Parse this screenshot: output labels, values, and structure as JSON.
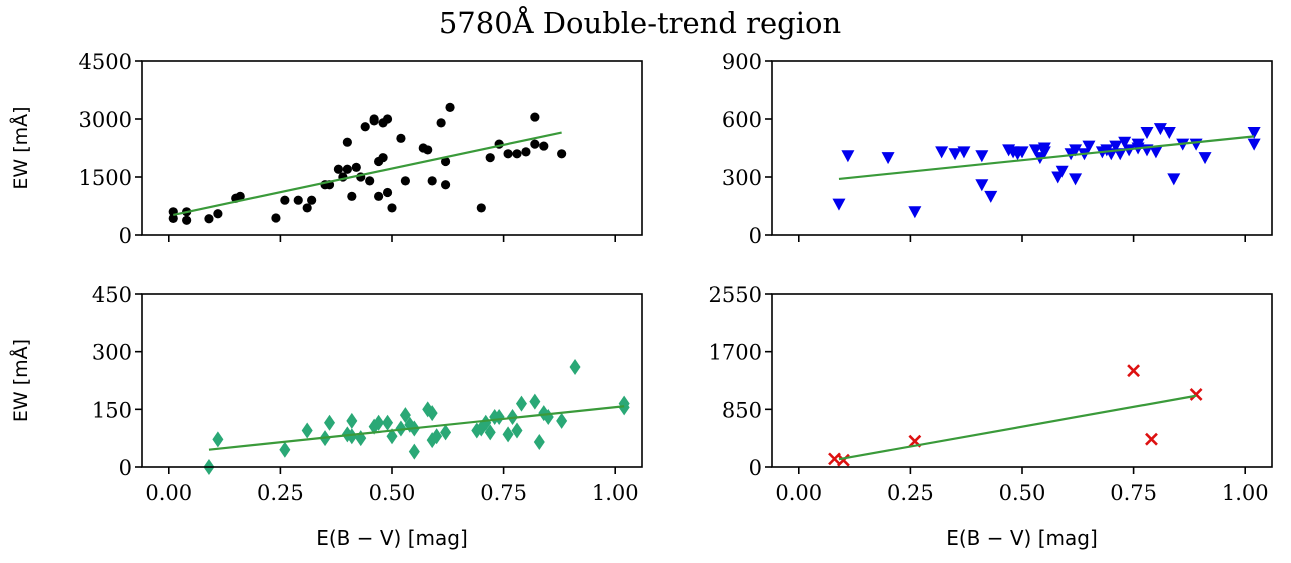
{
  "chart_data": {
    "title": "5780Å Double-trend region",
    "panels": [
      {
        "type": "scatter",
        "name": "top-left",
        "ylabel": "EW [mÅ]",
        "xlabel": "",
        "xlim": [
          -0.06,
          1.06
        ],
        "ylim": [
          0,
          4500
        ],
        "yticks": [
          0,
          1500,
          3000,
          4500
        ],
        "yticklabels": [
          "0",
          "1500",
          "3000",
          "4500"
        ],
        "xticks": [
          0.0,
          0.25,
          0.5,
          0.75,
          1.0
        ],
        "xticklabels": [],
        "marker": "circle",
        "color": "#000000",
        "fit_color": "#3a9a3a",
        "fit": {
          "x": [
            0.01,
            0.88
          ],
          "y": [
            520,
            2650
          ]
        },
        "points": {
          "x": [
            0.01,
            0.01,
            0.04,
            0.04,
            0.09,
            0.11,
            0.15,
            0.16,
            0.24,
            0.26,
            0.29,
            0.31,
            0.32,
            0.35,
            0.36,
            0.38,
            0.39,
            0.4,
            0.4,
            0.41,
            0.42,
            0.43,
            0.44,
            0.45,
            0.46,
            0.46,
            0.47,
            0.47,
            0.48,
            0.48,
            0.49,
            0.49,
            0.5,
            0.52,
            0.53,
            0.57,
            0.58,
            0.59,
            0.61,
            0.62,
            0.62,
            0.63,
            0.7,
            0.72,
            0.74,
            0.76,
            0.78,
            0.8,
            0.82,
            0.82,
            0.84,
            0.88
          ],
          "y": [
            600,
            430,
            600,
            380,
            420,
            550,
            950,
            1000,
            440,
            900,
            900,
            700,
            900,
            1300,
            1300,
            1700,
            1500,
            2400,
            1700,
            1000,
            1750,
            1500,
            2800,
            1400,
            2950,
            3000,
            1000,
            1900,
            2900,
            2000,
            1100,
            3000,
            700,
            2500,
            1400,
            2250,
            2200,
            1400,
            2900,
            1300,
            1900,
            3300,
            700,
            2000,
            2350,
            2100,
            2100,
            2150,
            3050,
            2350,
            2300,
            2100
          ]
        }
      },
      {
        "type": "scatter",
        "name": "top-right",
        "ylabel": "",
        "xlabel": "",
        "xlim": [
          -0.06,
          1.06
        ],
        "ylim": [
          0,
          900
        ],
        "yticks": [
          0,
          300,
          600,
          900
        ],
        "yticklabels": [
          "0",
          "300",
          "600",
          "900"
        ],
        "xticks": [
          0.0,
          0.25,
          0.5,
          0.75,
          1.0
        ],
        "xticklabels": [],
        "marker": "triangle-down",
        "color": "#0000ee",
        "fit_color": "#3a9a3a",
        "fit": {
          "x": [
            0.09,
            1.02
          ],
          "y": [
            290,
            510
          ]
        },
        "points": {
          "x": [
            0.09,
            0.11,
            0.2,
            0.26,
            0.32,
            0.35,
            0.37,
            0.41,
            0.41,
            0.43,
            0.47,
            0.48,
            0.49,
            0.5,
            0.53,
            0.54,
            0.55,
            0.55,
            0.58,
            0.59,
            0.61,
            0.62,
            0.62,
            0.64,
            0.65,
            0.68,
            0.69,
            0.7,
            0.71,
            0.72,
            0.73,
            0.74,
            0.76,
            0.76,
            0.78,
            0.78,
            0.8,
            0.81,
            0.83,
            0.84,
            0.86,
            0.89,
            0.91,
            1.02,
            1.02
          ],
          "y": [
            160,
            410,
            400,
            120,
            430,
            420,
            430,
            260,
            410,
            200,
            440,
            430,
            420,
            430,
            440,
            400,
            450,
            430,
            300,
            330,
            420,
            440,
            290,
            420,
            460,
            430,
            440,
            420,
            460,
            420,
            480,
            440,
            470,
            450,
            440,
            530,
            430,
            550,
            530,
            290,
            470,
            470,
            400,
            530,
            470
          ]
        }
      },
      {
        "type": "scatter",
        "name": "bottom-left",
        "ylabel": "EW [mÅ]",
        "xlabel": "E(B − V) [mag]",
        "xlim": [
          -0.06,
          1.06
        ],
        "ylim": [
          0,
          450
        ],
        "yticks": [
          0,
          150,
          300,
          450
        ],
        "yticklabels": [
          "0",
          "150",
          "300",
          "450"
        ],
        "xticks": [
          0.0,
          0.25,
          0.5,
          0.75,
          1.0
        ],
        "xticklabels": [
          "0.00",
          "0.25",
          "0.50",
          "0.75",
          "1.00"
        ],
        "marker": "diamond",
        "color": "#2aa876",
        "fit_color": "#3a9a3a",
        "fit": {
          "x": [
            0.09,
            1.02
          ],
          "y": [
            45,
            158
          ]
        },
        "points": {
          "x": [
            0.09,
            0.11,
            0.26,
            0.31,
            0.35,
            0.36,
            0.4,
            0.41,
            0.41,
            0.43,
            0.46,
            0.47,
            0.49,
            0.5,
            0.52,
            0.53,
            0.54,
            0.55,
            0.55,
            0.58,
            0.59,
            0.59,
            0.6,
            0.62,
            0.69,
            0.7,
            0.71,
            0.72,
            0.73,
            0.74,
            0.76,
            0.77,
            0.78,
            0.79,
            0.82,
            0.83,
            0.84,
            0.85,
            0.88,
            0.91,
            1.02,
            1.02
          ],
          "y": [
            0,
            72,
            45,
            95,
            75,
            115,
            85,
            120,
            80,
            75,
            105,
            115,
            115,
            80,
            100,
            135,
            110,
            100,
            40,
            150,
            70,
            140,
            80,
            90,
            95,
            100,
            115,
            90,
            130,
            130,
            85,
            130,
            95,
            165,
            170,
            65,
            140,
            130,
            120,
            260,
            155,
            165
          ]
        }
      },
      {
        "type": "scatter",
        "name": "bottom-right",
        "ylabel": "",
        "xlabel": "E(B − V) [mag]",
        "xlim": [
          -0.06,
          1.06
        ],
        "ylim": [
          0,
          2550
        ],
        "yticks": [
          0,
          850,
          1700,
          2550
        ],
        "yticklabels": [
          "0",
          "850",
          "1700",
          "2550"
        ],
        "xticks": [
          0.0,
          0.25,
          0.5,
          0.75,
          1.0
        ],
        "xticklabels": [
          "0.00",
          "0.25",
          "0.50",
          "0.75",
          "1.00"
        ],
        "marker": "x",
        "color": "#dd1111",
        "fit_color": "#3a9a3a",
        "fit": {
          "x": [
            0.09,
            0.89
          ],
          "y": [
            115,
            1050
          ]
        },
        "points": {
          "x": [
            0.08,
            0.1,
            0.26,
            0.75,
            0.79,
            0.89
          ],
          "y": [
            120,
            100,
            380,
            1420,
            410,
            1070
          ]
        }
      }
    ]
  }
}
